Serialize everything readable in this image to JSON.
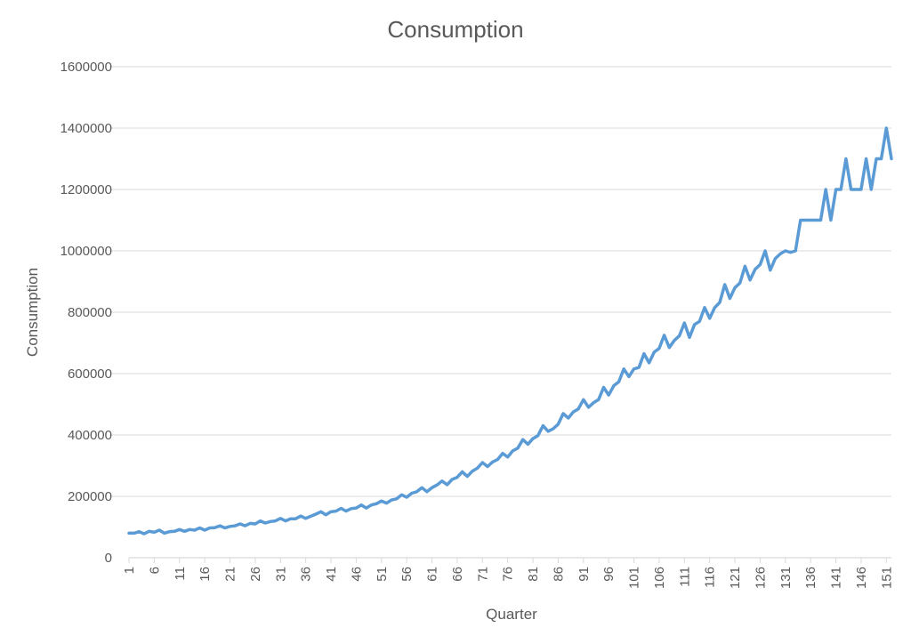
{
  "chart_data": {
    "type": "line",
    "title": "Consumption",
    "xlabel": "Quarter",
    "ylabel": "Consumption",
    "ylim": [
      0,
      1600000
    ],
    "yticks": [
      0,
      200000,
      400000,
      600000,
      800000,
      1000000,
      1200000,
      1400000,
      1600000
    ],
    "xtick_labels": [
      "1",
      "6",
      "11",
      "16",
      "21",
      "26",
      "31",
      "36",
      "41",
      "46",
      "51",
      "56",
      "61",
      "66",
      "71",
      "76",
      "81",
      "86",
      "91",
      "96",
      "101",
      "106",
      "111",
      "116",
      "121",
      "126",
      "131",
      "136",
      "141",
      "146",
      "151"
    ],
    "grid": true,
    "legend": "none",
    "colors": {
      "line": "#5B9BD5",
      "grid": "#D9D9D9",
      "text": "#595959"
    },
    "series": [
      {
        "x": [
          1,
          2,
          3,
          4,
          5,
          6,
          7,
          8,
          9,
          10,
          11,
          12,
          13,
          14,
          15,
          16,
          17,
          18,
          19,
          20,
          21,
          22,
          23,
          24,
          25,
          26,
          27,
          28,
          29,
          30,
          31,
          32,
          33,
          34,
          35,
          36,
          37,
          38,
          39,
          40,
          41,
          42,
          43,
          44,
          45,
          46,
          47,
          48,
          49,
          50,
          51,
          52,
          53,
          54,
          55,
          56,
          57,
          58,
          59,
          60,
          61,
          62,
          63,
          64,
          65,
          66,
          67,
          68,
          69,
          70,
          71,
          72,
          73,
          74,
          75,
          76,
          77,
          78,
          79,
          80,
          81,
          82,
          83,
          84,
          85,
          86,
          87,
          88,
          89,
          90,
          91,
          92,
          93,
          94,
          95,
          96,
          97,
          98,
          99,
          100,
          101,
          102,
          103,
          104,
          105,
          106,
          107,
          108,
          109,
          110,
          111,
          112,
          113,
          114,
          115,
          116,
          117,
          118,
          119,
          120,
          121,
          122,
          123,
          124,
          125,
          126,
          127,
          128,
          129,
          130,
          131,
          132,
          133,
          134,
          135,
          136,
          137,
          138,
          139,
          140,
          141,
          142,
          143,
          144,
          145,
          146,
          147,
          148,
          149,
          150,
          151,
          152
        ],
        "values": [
          80000,
          80000,
          85000,
          78000,
          86000,
          83000,
          90000,
          80000,
          85000,
          86000,
          92000,
          86000,
          92000,
          90000,
          97000,
          90000,
          97000,
          98000,
          104000,
          97000,
          102000,
          104000,
          110000,
          104000,
          112000,
          110000,
          120000,
          113000,
          118000,
          120000,
          128000,
          120000,
          127000,
          127000,
          136000,
          128000,
          135000,
          142000,
          150000,
          140000,
          150000,
          152000,
          161000,
          152000,
          160000,
          162000,
          172000,
          162000,
          172000,
          176000,
          185000,
          178000,
          188000,
          192000,
          205000,
          197000,
          210000,
          215000,
          228000,
          215000,
          228000,
          237000,
          250000,
          238000,
          255000,
          262000,
          280000,
          265000,
          282000,
          292000,
          310000,
          297000,
          312000,
          320000,
          340000,
          328000,
          348000,
          357000,
          385000,
          370000,
          388000,
          398000,
          430000,
          412000,
          420000,
          435000,
          470000,
          455000,
          475000,
          485000,
          515000,
          490000,
          505000,
          515000,
          555000,
          530000,
          560000,
          573000,
          615000,
          590000,
          615000,
          620000,
          665000,
          635000,
          670000,
          682000,
          725000,
          685000,
          708000,
          723000,
          765000,
          718000,
          760000,
          770000,
          815000,
          780000,
          815000,
          832000,
          890000,
          845000,
          880000,
          895000,
          950000,
          905000,
          940000,
          955000,
          1000000,
          937000,
          975000,
          990000,
          1000000,
          995000,
          1000000,
          1100000,
          1100000,
          1100000,
          1100000,
          1100000,
          1200000,
          1100000,
          1200000,
          1200000,
          1300000,
          1200000,
          1200000,
          1200000,
          1300000,
          1200000,
          1300000,
          1300000,
          1400000,
          1300000
        ]
      }
    ]
  }
}
